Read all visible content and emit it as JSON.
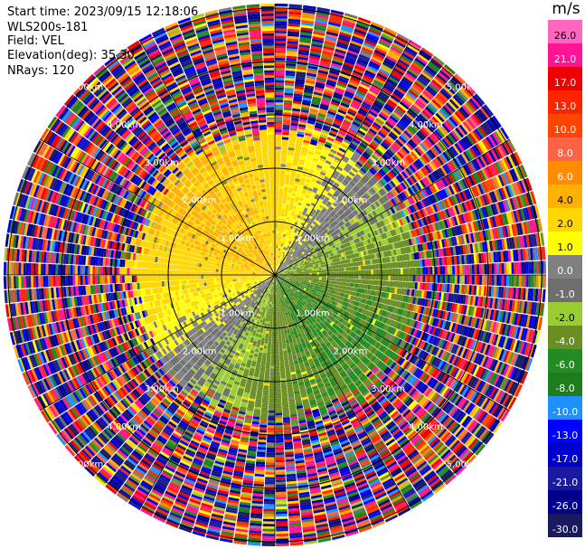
{
  "header": {
    "start_time": "Start time: 2023/09/15 12:18:06",
    "instrument": "WLS200s-181",
    "field": "Field: VEL",
    "elevation": "Elevation(deg): 35.30",
    "nrays": "NRays: 120"
  },
  "colorbar": {
    "unit": "m/s",
    "labels": [
      "26.0",
      "21.0",
      "17.0",
      "13.0",
      "10.0",
      "8.0",
      "6.0",
      "4.0",
      "2.0",
      "1.0",
      "0.0",
      "-1.0",
      "-2.0",
      "-4.0",
      "-6.0",
      "-8.0",
      "-10.0",
      "-13.0",
      "-17.0",
      "-21.0",
      "-26.0",
      "-30.0"
    ],
    "colors": [
      "#ff66c0",
      "#ff1493",
      "#ee0000",
      "#ff2400",
      "#ff4500",
      "#ff6347",
      "#ff8c00",
      "#ffb000",
      "#ffd700",
      "#ffff00",
      "#808080",
      "#6e6e6e",
      "#9acd32",
      "#6b8e23",
      "#228b22",
      "#1e7b1e",
      "#1e90ff",
      "#0000ff",
      "#0000cd",
      "#1a1aa0",
      "#00008b",
      "#1a1a5e"
    ]
  },
  "chart_data": {
    "type": "heatmap",
    "plot_kind": "PPI (plan position indicator) polar scan",
    "field": "VEL",
    "units": "m/s",
    "n_rays": 120,
    "elevation_deg": 35.3,
    "range_ring_labels": [
      "1.00km",
      "2.00km",
      "3.00km",
      "4.00km",
      "5.00km"
    ],
    "colormap_levels": [
      -30.0,
      -26.0,
      -21.0,
      -17.0,
      -13.0,
      -10.0,
      -8.0,
      -6.0,
      -4.0,
      -2.0,
      -1.0,
      0.0,
      1.0,
      2.0,
      4.0,
      6.0,
      8.0,
      10.0,
      13.0,
      17.0,
      21.0,
      26.0
    ],
    "pattern_summary": {
      "inner_north_west": "positive ~2 to 4 m/s (yellow)",
      "inner_south_east": "negative ~-2 to -6 m/s (green)",
      "transition": "near 0 m/s (gray)",
      "beyond_about_2.5km": "noise, all colors"
    }
  }
}
